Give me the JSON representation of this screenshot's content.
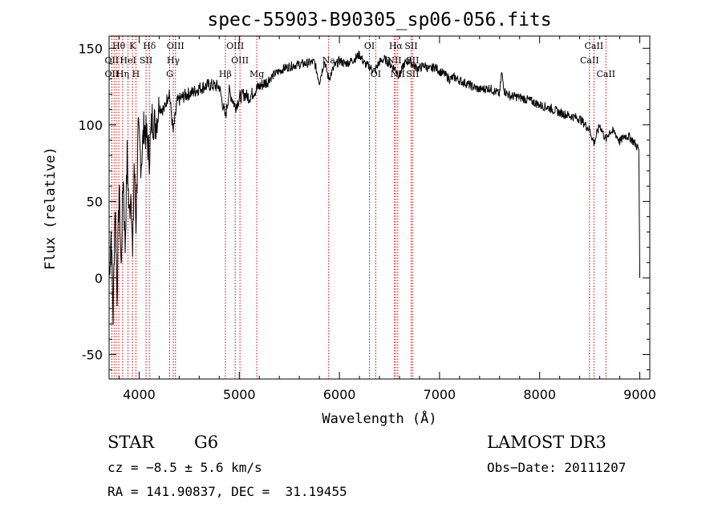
{
  "chart_data": {
    "type": "line",
    "title": "spec-55903-B90305_sp06-056.fits",
    "xlabel": "Wavelength (Å)",
    "ylabel": "Flux (relative)",
    "xlim": [
      3700,
      9100
    ],
    "ylim": [
      -66,
      158
    ],
    "xticks": [
      4000,
      5000,
      6000,
      7000,
      8000,
      9000
    ],
    "yticks": [
      -50,
      0,
      50,
      100,
      150
    ],
    "series": [
      {
        "name": "flux",
        "x": [
          3700,
          3720,
          3740,
          3760,
          3780,
          3800,
          3820,
          3840,
          3860,
          3880,
          3900,
          3920,
          3935,
          3950,
          3968,
          3990,
          4020,
          4050,
          4080,
          4102,
          4130,
          4160,
          4200,
          4250,
          4300,
          4340,
          4380,
          4430,
          4480,
          4530,
          4600,
          4700,
          4800,
          4861,
          4900,
          4960,
          5007,
          5050,
          5100,
          5150,
          5200,
          5270,
          5350,
          5450,
          5550,
          5650,
          5750,
          5800,
          5850,
          5893,
          5950,
          6000,
          6050,
          6100,
          6150,
          6200,
          6250,
          6300,
          6350,
          6400,
          6450,
          6500,
          6563,
          6600,
          6650,
          6700,
          6750,
          6800,
          6850,
          6900,
          6950,
          7000,
          7050,
          7100,
          7150,
          7200,
          7300,
          7400,
          7500,
          7550,
          7600,
          7620,
          7650,
          7700,
          7800,
          7900,
          8000,
          8100,
          8200,
          8300,
          8400,
          8498,
          8542,
          8600,
          8662,
          8700,
          8750,
          8800,
          8850,
          8900,
          8950,
          8990,
          9000,
          9000
        ],
        "values": [
          0,
          30,
          -25,
          50,
          -10,
          60,
          5,
          70,
          20,
          80,
          40,
          60,
          10,
          75,
          35,
          95,
          75,
          100,
          90,
          80,
          105,
          100,
          112,
          110,
          122,
          95,
          115,
          118,
          120,
          121,
          124,
          126,
          125,
          105,
          122,
          112,
          118,
          120,
          118,
          122,
          125,
          128,
          133,
          137,
          139,
          140,
          141,
          128,
          142,
          130,
          138,
          142,
          140,
          141,
          143,
          146,
          140,
          138,
          135,
          141,
          143,
          140,
          136,
          132,
          140,
          142,
          138,
          137,
          139,
          136,
          138,
          135,
          133,
          130,
          131,
          129,
          126,
          123,
          124,
          122,
          120,
          134,
          122,
          119,
          118,
          116,
          113,
          111,
          108,
          106,
          104,
          97,
          88,
          100,
          90,
          96,
          95,
          89,
          93,
          92,
          88,
          84,
          5,
          0
        ]
      }
    ],
    "line_labels": [
      {
        "text": "Hθ",
        "x": 3797,
        "row": 1
      },
      {
        "text": "OII",
        "x": 3727,
        "row": 2
      },
      {
        "text": "OII",
        "x": 3727,
        "row": 3
      },
      {
        "text": "K",
        "x": 3934,
        "row": 1
      },
      {
        "text": "HeI",
        "x": 3889,
        "row": 2
      },
      {
        "text": "Hη",
        "x": 3835,
        "row": 3
      },
      {
        "text": "Hδ",
        "x": 4102,
        "row": 1
      },
      {
        "text": "SII",
        "x": 4069,
        "row": 2
      },
      {
        "text": "H",
        "x": 3968,
        "row": 3
      },
      {
        "text": "OIII",
        "x": 4363,
        "row": 1
      },
      {
        "text": "Hγ",
        "x": 4341,
        "row": 2
      },
      {
        "text": "G",
        "x": 4305,
        "row": 3
      },
      {
        "text": "OIII",
        "x": 4959,
        "row": 1
      },
      {
        "text": "OIII",
        "x": 5007,
        "row": 2
      },
      {
        "text": "Hβ",
        "x": 4861,
        "row": 3
      },
      {
        "text": "Mg",
        "x": 5175,
        "row": 3
      },
      {
        "text": "Na",
        "x": 5893,
        "row": 2
      },
      {
        "text": "OI",
        "x": 6300,
        "row": 1
      },
      {
        "text": "OI",
        "x": 6363,
        "row": 3
      },
      {
        "text": "Hα",
        "x": 6563,
        "row": 1
      },
      {
        "text": "SII",
        "x": 6716,
        "row": 1
      },
      {
        "text": "NII",
        "x": 6548,
        "row": 2
      },
      {
        "text": "SII",
        "x": 6731,
        "row": 2
      },
      {
        "text": "NII",
        "x": 6583,
        "row": 3
      },
      {
        "text": "SII",
        "x": 6731,
        "row": 3
      },
      {
        "text": "CaII",
        "x": 8542,
        "row": 1
      },
      {
        "text": "CaII",
        "x": 8498,
        "row": 2
      },
      {
        "text": "CaII",
        "x": 8662,
        "row": 3
      }
    ],
    "line_markers": [
      3727,
      3750,
      3771,
      3797,
      3835,
      3889,
      3934,
      3968,
      4069,
      4102,
      4305,
      4341,
      4363,
      4861,
      4959,
      5007,
      5175,
      5893,
      6300,
      6363,
      6548,
      6563,
      6583,
      6716,
      6731,
      8498,
      8542,
      8662
    ],
    "colors": {
      "spectrum": "#000000",
      "marker": "#cc0000",
      "axis": "#000000"
    }
  },
  "info": {
    "class_label": "STAR",
    "subclass": "G6",
    "survey": "LAMOST DR3",
    "cz": "cz = −8.5 ± 5.6 km/s",
    "obs_date": "Obs−Date: 20111207",
    "coords": "RA = 141.90837, DEC =  31.19455"
  }
}
